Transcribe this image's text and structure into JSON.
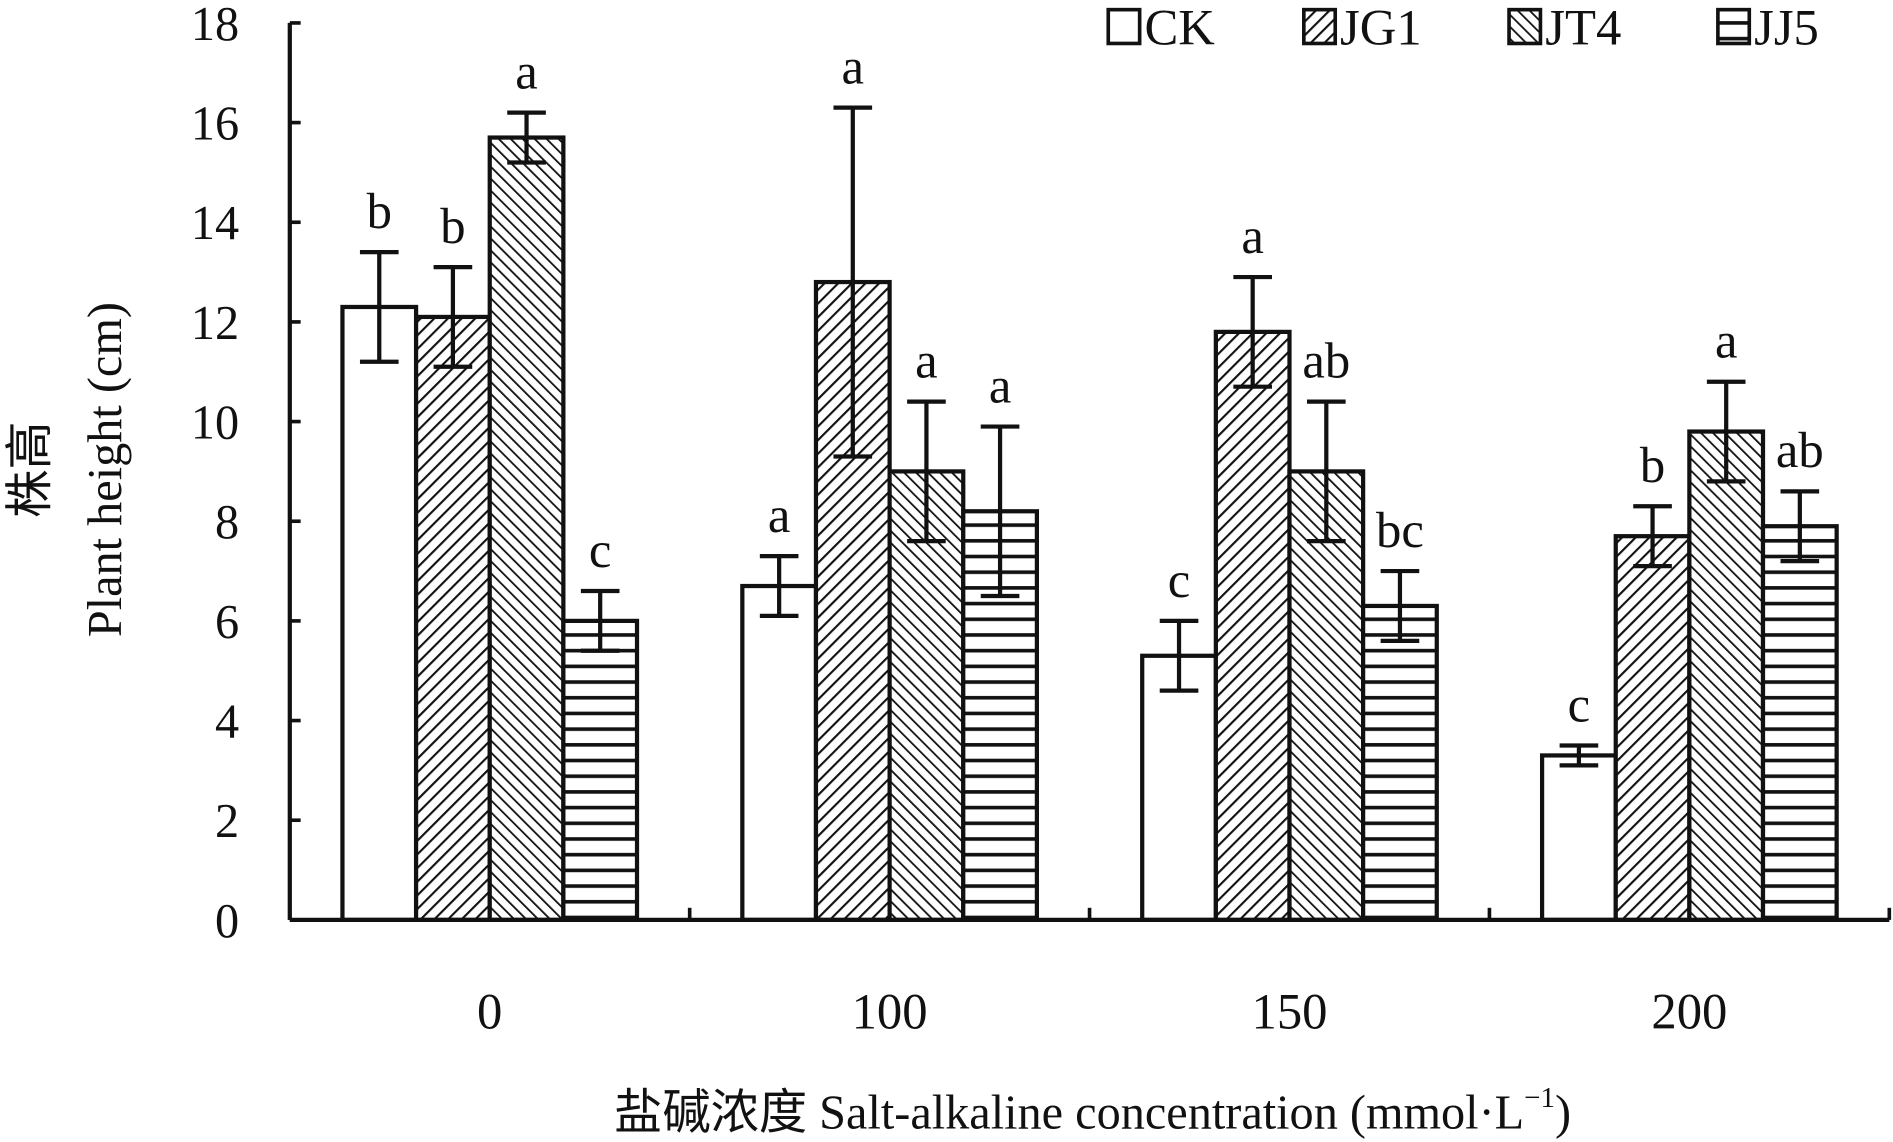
{
  "chart_data": {
    "type": "bar",
    "y_label": [
      "株高",
      "Plant height (cm)"
    ],
    "x_label": "盐碱浓度 Salt-alkaline concentration (mmol·L",
    "x_label_superscript": "−1",
    "x_label_end": ")",
    "categories": [
      "0",
      "100",
      "150",
      "200"
    ],
    "series": [
      {
        "name": "CK",
        "color": "#ffffff",
        "pattern": "none",
        "values": [
          12.3,
          6.7,
          5.3,
          3.3
        ],
        "errors": [
          1.1,
          0.6,
          0.7,
          0.2
        ],
        "letters": [
          "b",
          "a",
          "c",
          "c"
        ]
      },
      {
        "name": "JG1",
        "color": "#ffffff",
        "pattern": "diagonal",
        "values": [
          12.1,
          12.8,
          11.8,
          7.7
        ],
        "errors": [
          1.0,
          3.5,
          1.1,
          0.6
        ],
        "letters": [
          "b",
          "a",
          "a",
          "b"
        ]
      },
      {
        "name": "JT4",
        "color": "#ffffff",
        "pattern": "back-diagonal",
        "values": [
          15.7,
          9.0,
          9.0,
          9.8
        ],
        "errors": [
          0.5,
          1.4,
          1.4,
          1.0
        ],
        "letters": [
          "a",
          "a",
          "ab",
          "a"
        ]
      },
      {
        "name": "JJ5",
        "color": "#ffffff",
        "pattern": "horizontal",
        "values": [
          6.0,
          8.2,
          6.3,
          7.9
        ],
        "errors": [
          0.6,
          1.7,
          0.7,
          0.7
        ],
        "letters": [
          "c",
          "a",
          "bc",
          "ab"
        ]
      }
    ],
    "ylim": [
      0,
      18
    ],
    "yticks": [
      0,
      2,
      4,
      6,
      8,
      10,
      12,
      14,
      16,
      18
    ],
    "legend": "top-right",
    "grid": false
  }
}
